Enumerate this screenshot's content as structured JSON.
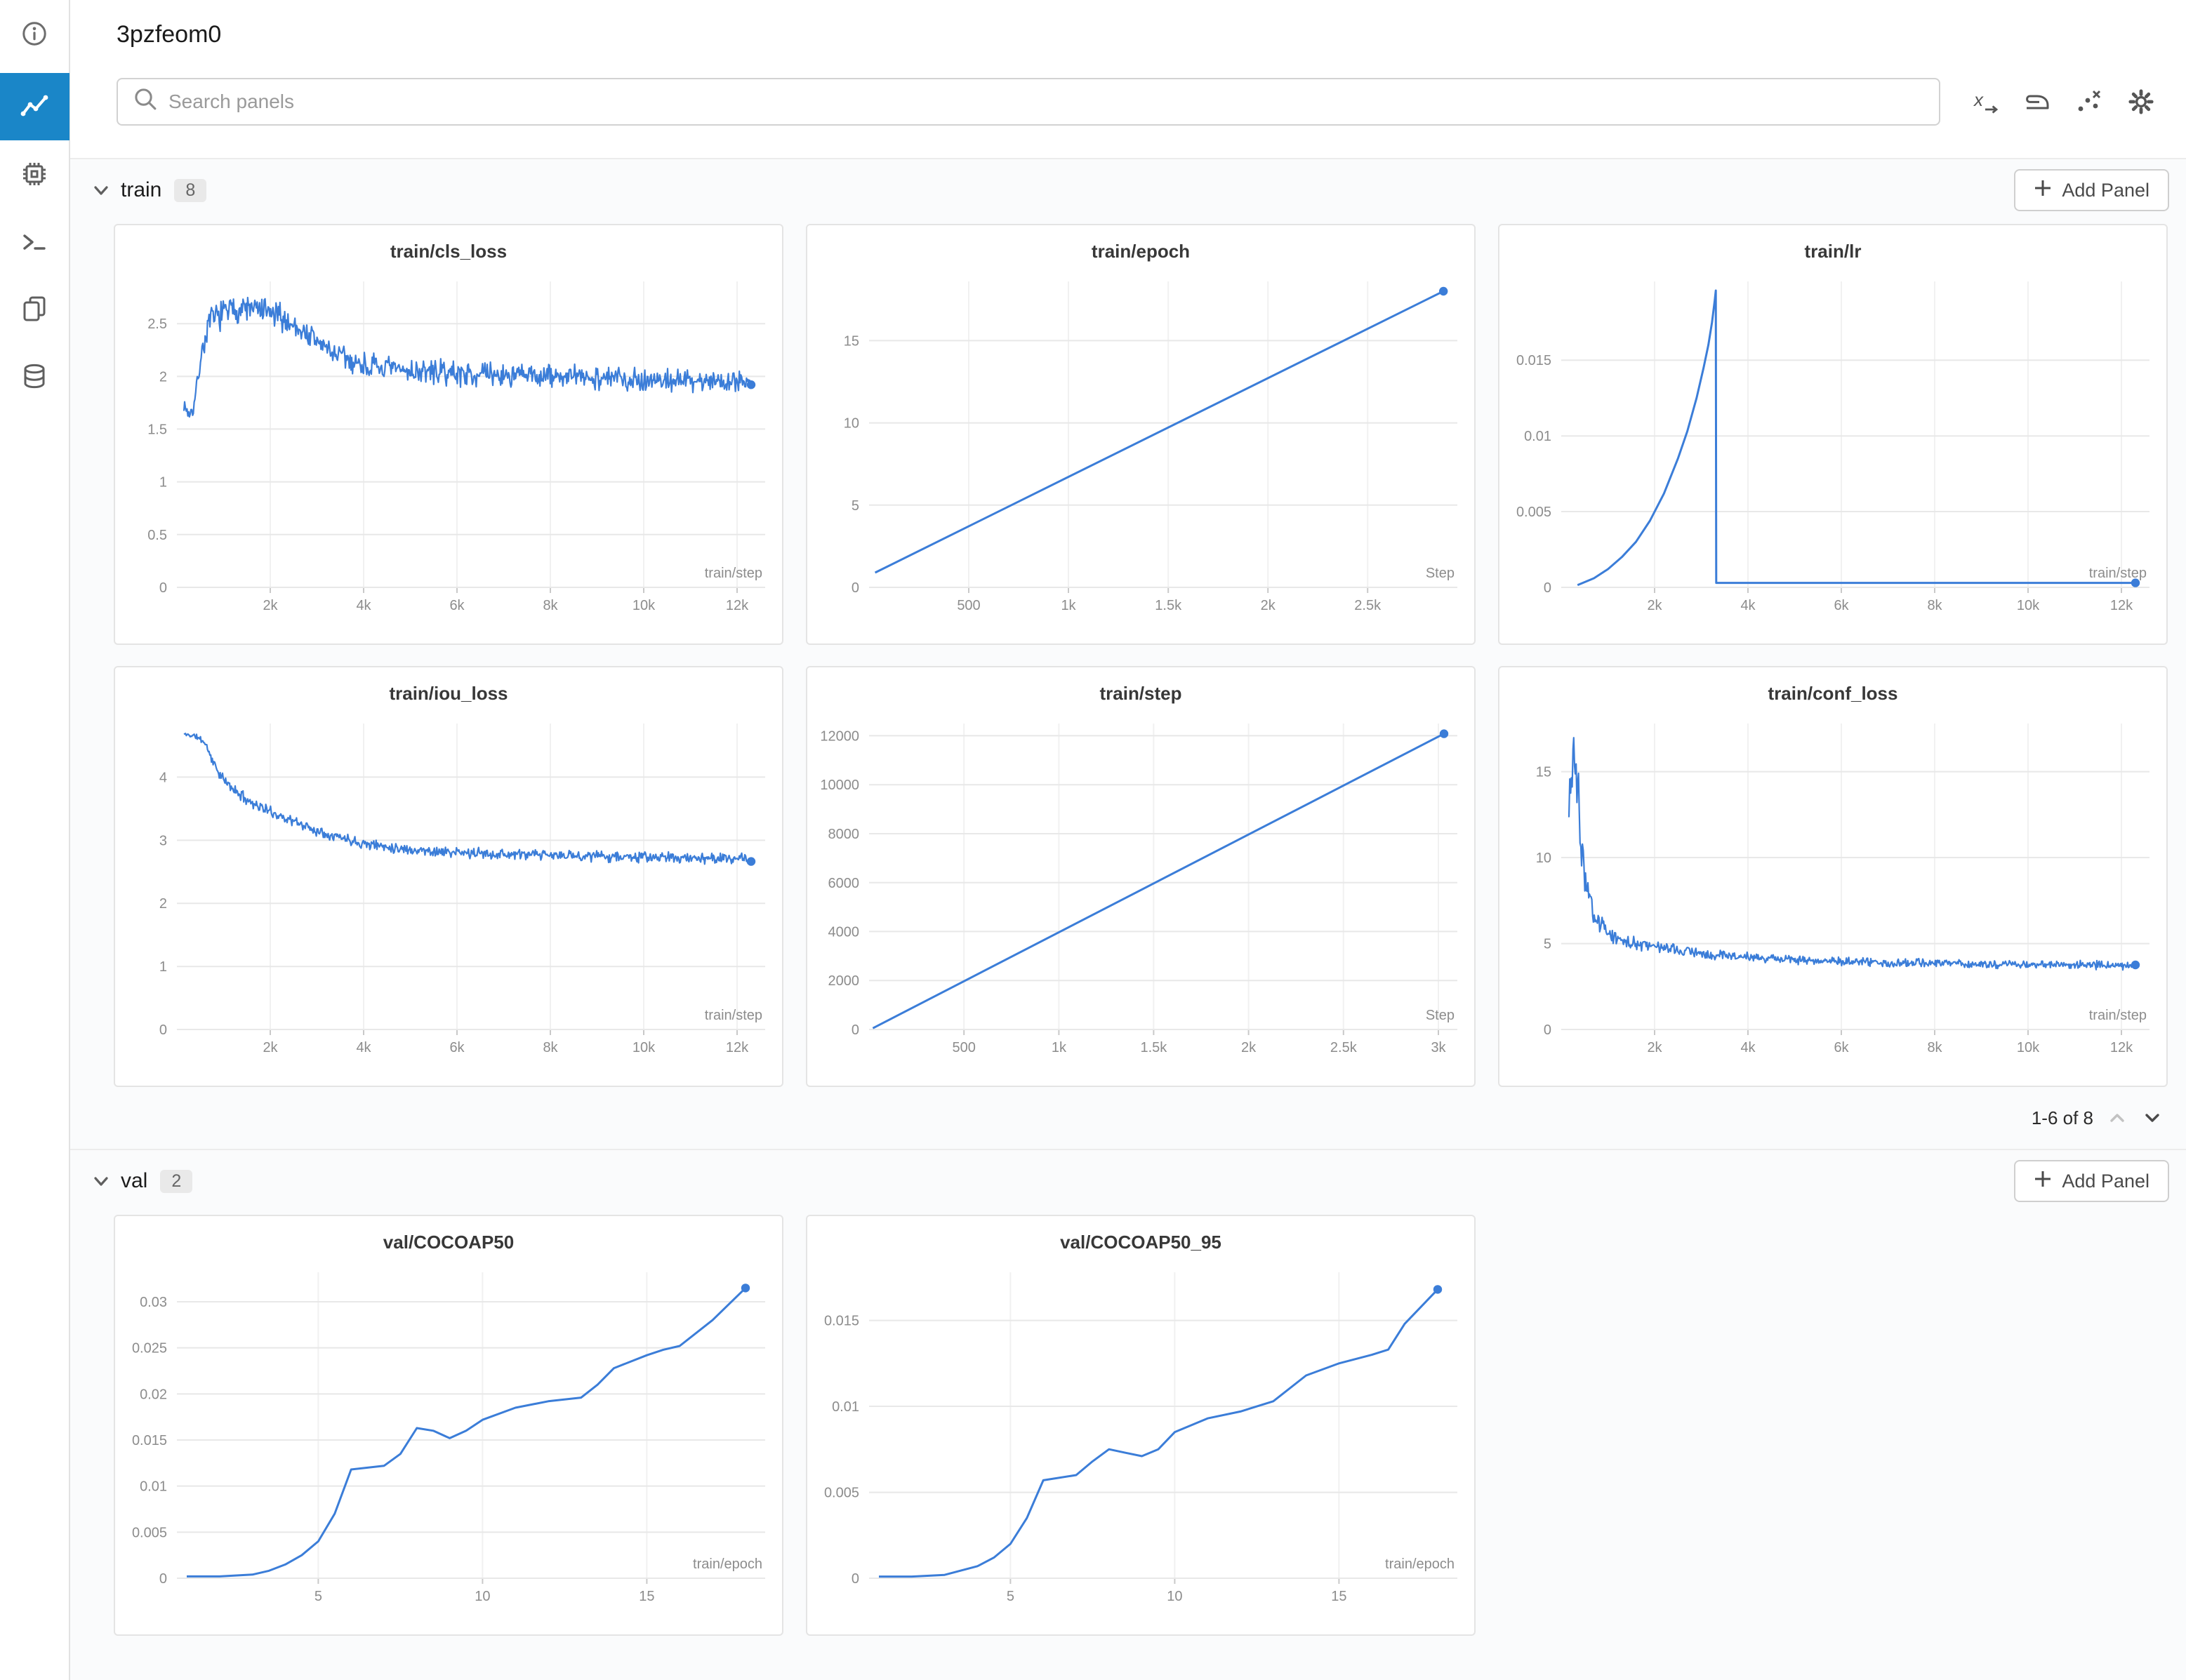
{
  "header": {
    "title": "3pzfeom0"
  },
  "search": {
    "placeholder": "Search panels"
  },
  "colors": {
    "line": "#3b7dd8",
    "nav_selected": "#1a86c8",
    "grid": "#e8e8e8",
    "tick_text": "#8c8c8c"
  },
  "icons": {
    "sidebar": [
      "info-icon",
      "line-chart-icon",
      "chip-icon",
      "terminal-icon",
      "files-icon",
      "database-icon"
    ],
    "toolbar": [
      "x-axis-icon",
      "smoothing-iron-icon",
      "sampling-dots-icon",
      "gear-icon"
    ],
    "search": "search-icon",
    "section": "chevron-down-icon",
    "add_panel": "plus-icon",
    "pagination": [
      "chevron-up-icon",
      "chevron-down-icon"
    ]
  },
  "sections": [
    {
      "label": "train",
      "count": "8",
      "add_panel": "Add Panel",
      "chart_indexes": [
        0,
        1,
        2,
        3,
        4,
        5
      ],
      "pagination": {
        "text": "1-6 of 8"
      }
    },
    {
      "label": "val",
      "count": "2",
      "add_panel": "Add Panel",
      "chart_indexes": [
        6,
        7
      ]
    }
  ],
  "chart_data": [
    {
      "type": "line",
      "title": "train/cls_loss",
      "xlabel": "train/step",
      "xlim": [
        0,
        12600
      ],
      "ylim": [
        0,
        2.9
      ],
      "noisy": true,
      "seed": 7,
      "end_dot": true,
      "x_ticks": [
        {
          "v": 2000,
          "l": "2k"
        },
        {
          "v": 4000,
          "l": "4k"
        },
        {
          "v": 6000,
          "l": "6k"
        },
        {
          "v": 8000,
          "l": "8k"
        },
        {
          "v": 10000,
          "l": "10k"
        },
        {
          "v": 12000,
          "l": "12k"
        }
      ],
      "y_ticks": [
        {
          "v": 0,
          "l": "0"
        },
        {
          "v": 0.5,
          "l": "0.5"
        },
        {
          "v": 1,
          "l": "1"
        },
        {
          "v": 1.5,
          "l": "1.5"
        },
        {
          "v": 2,
          "l": "2"
        },
        {
          "v": 2.5,
          "l": "2.5"
        }
      ],
      "points": [
        [
          150,
          1.73,
          0.05
        ],
        [
          260,
          1.64,
          0.05
        ],
        [
          360,
          1.7,
          0.07
        ],
        [
          520,
          2.2,
          0.1
        ],
        [
          700,
          2.52,
          0.12
        ],
        [
          1000,
          2.6,
          0.13
        ],
        [
          1400,
          2.65,
          0.13
        ],
        [
          1800,
          2.62,
          0.13
        ],
        [
          2200,
          2.56,
          0.13
        ],
        [
          2600,
          2.46,
          0.12
        ],
        [
          3000,
          2.33,
          0.12
        ],
        [
          3400,
          2.21,
          0.12
        ],
        [
          3800,
          2.13,
          0.12
        ],
        [
          4300,
          2.08,
          0.11
        ],
        [
          5000,
          2.05,
          0.11
        ],
        [
          6000,
          2.03,
          0.11
        ],
        [
          7000,
          2.01,
          0.11
        ],
        [
          8000,
          2.0,
          0.11
        ],
        [
          9000,
          1.99,
          0.11
        ],
        [
          10000,
          1.97,
          0.11
        ],
        [
          11000,
          1.96,
          0.1
        ],
        [
          12300,
          1.96,
          0.1
        ]
      ]
    },
    {
      "type": "line",
      "title": "train/epoch",
      "xlabel": "Step",
      "xlim": [
        0,
        2950
      ],
      "ylim": [
        0,
        18.6
      ],
      "noisy": false,
      "end_dot": true,
      "x_ticks": [
        {
          "v": 500,
          "l": "500"
        },
        {
          "v": 1000,
          "l": "1k"
        },
        {
          "v": 1500,
          "l": "1.5k"
        },
        {
          "v": 2000,
          "l": "2k"
        },
        {
          "v": 2500,
          "l": "2.5k"
        }
      ],
      "y_ticks": [
        {
          "v": 0,
          "l": "0"
        },
        {
          "v": 5,
          "l": "5"
        },
        {
          "v": 10,
          "l": "10"
        },
        {
          "v": 15,
          "l": "15"
        }
      ],
      "points": [
        [
          30,
          0.9
        ],
        [
          2880,
          18
        ]
      ]
    },
    {
      "type": "line",
      "title": "train/lr",
      "xlabel": "train/step",
      "xlim": [
        0,
        12600
      ],
      "ylim": [
        0,
        0.0202
      ],
      "noisy": false,
      "end_dot": true,
      "x_ticks": [
        {
          "v": 2000,
          "l": "2k"
        },
        {
          "v": 4000,
          "l": "4k"
        },
        {
          "v": 6000,
          "l": "6k"
        },
        {
          "v": 8000,
          "l": "8k"
        },
        {
          "v": 10000,
          "l": "10k"
        },
        {
          "v": 12000,
          "l": "12k"
        }
      ],
      "y_ticks": [
        {
          "v": 0,
          "l": "0"
        },
        {
          "v": 0.005,
          "l": "0.005"
        },
        {
          "v": 0.01,
          "l": "0.01"
        },
        {
          "v": 0.015,
          "l": "0.015"
        }
      ],
      "points": [
        [
          350,
          0.00015
        ],
        [
          700,
          0.0006
        ],
        [
          1000,
          0.0012
        ],
        [
          1300,
          0.002
        ],
        [
          1600,
          0.003
        ],
        [
          1900,
          0.0044
        ],
        [
          2200,
          0.0062
        ],
        [
          2500,
          0.0085
        ],
        [
          2700,
          0.0103
        ],
        [
          2900,
          0.0125
        ],
        [
          3050,
          0.0145
        ],
        [
          3150,
          0.016
        ],
        [
          3230,
          0.0175
        ],
        [
          3290,
          0.019
        ],
        [
          3310,
          0.0196
        ],
        [
          3320,
          0.0003
        ],
        [
          12300,
          0.0003
        ]
      ]
    },
    {
      "type": "line",
      "title": "train/iou_loss",
      "xlabel": "train/step",
      "xlim": [
        0,
        12600
      ],
      "ylim": [
        0,
        4.85
      ],
      "noisy": true,
      "seed": 11,
      "end_dot": true,
      "x_ticks": [
        {
          "v": 2000,
          "l": "2k"
        },
        {
          "v": 4000,
          "l": "4k"
        },
        {
          "v": 6000,
          "l": "6k"
        },
        {
          "v": 8000,
          "l": "8k"
        },
        {
          "v": 10000,
          "l": "10k"
        },
        {
          "v": 12000,
          "l": "12k"
        }
      ],
      "y_ticks": [
        {
          "v": 0,
          "l": "0"
        },
        {
          "v": 1,
          "l": "1"
        },
        {
          "v": 2,
          "l": "2"
        },
        {
          "v": 3,
          "l": "3"
        },
        {
          "v": 4,
          "l": "4"
        }
      ],
      "points": [
        [
          150,
          4.68,
          0.03
        ],
        [
          400,
          4.65,
          0.04
        ],
        [
          600,
          4.55,
          0.06
        ],
        [
          800,
          4.2,
          0.08
        ],
        [
          1000,
          3.95,
          0.08
        ],
        [
          1300,
          3.75,
          0.08
        ],
        [
          1600,
          3.6,
          0.08
        ],
        [
          2000,
          3.45,
          0.08
        ],
        [
          2500,
          3.3,
          0.08
        ],
        [
          3000,
          3.15,
          0.08
        ],
        [
          3500,
          3.05,
          0.08
        ],
        [
          4000,
          2.95,
          0.08
        ],
        [
          5000,
          2.85,
          0.08
        ],
        [
          6000,
          2.8,
          0.08
        ],
        [
          7000,
          2.78,
          0.08
        ],
        [
          8000,
          2.76,
          0.08
        ],
        [
          9000,
          2.75,
          0.08
        ],
        [
          10000,
          2.73,
          0.08
        ],
        [
          11000,
          2.72,
          0.08
        ],
        [
          12300,
          2.7,
          0.08
        ]
      ]
    },
    {
      "type": "line",
      "title": "train/step",
      "xlabel": "Step",
      "xlim": [
        0,
        3100
      ],
      "ylim": [
        0,
        12500
      ],
      "noisy": false,
      "end_dot": true,
      "x_ticks": [
        {
          "v": 500,
          "l": "500"
        },
        {
          "v": 1000,
          "l": "1k"
        },
        {
          "v": 1500,
          "l": "1.5k"
        },
        {
          "v": 2000,
          "l": "2k"
        },
        {
          "v": 2500,
          "l": "2.5k"
        },
        {
          "v": 3000,
          "l": "3k"
        }
      ],
      "y_ticks": [
        {
          "v": 0,
          "l": "0"
        },
        {
          "v": 2000,
          "l": "2000"
        },
        {
          "v": 4000,
          "l": "4000"
        },
        {
          "v": 6000,
          "l": "6000"
        },
        {
          "v": 8000,
          "l": "8000"
        },
        {
          "v": 10000,
          "l": "10000"
        },
        {
          "v": 12000,
          "l": "12000"
        }
      ],
      "points": [
        [
          20,
          50
        ],
        [
          3030,
          12080
        ]
      ]
    },
    {
      "type": "line",
      "title": "train/conf_loss",
      "xlabel": "train/step",
      "xlim": [
        0,
        12600
      ],
      "ylim": [
        0,
        17.8
      ],
      "noisy": true,
      "seed": 3,
      "end_dot": true,
      "x_ticks": [
        {
          "v": 2000,
          "l": "2k"
        },
        {
          "v": 4000,
          "l": "4k"
        },
        {
          "v": 6000,
          "l": "6k"
        },
        {
          "v": 8000,
          "l": "8k"
        },
        {
          "v": 10000,
          "l": "10k"
        },
        {
          "v": 12000,
          "l": "12k"
        }
      ],
      "y_ticks": [
        {
          "v": 0,
          "l": "0"
        },
        {
          "v": 5,
          "l": "5"
        },
        {
          "v": 10,
          "l": "10"
        },
        {
          "v": 15,
          "l": "15"
        }
      ],
      "points": [
        [
          150,
          13,
          2
        ],
        [
          250,
          16,
          1.5
        ],
        [
          350,
          14,
          2
        ],
        [
          450,
          10,
          1.5
        ],
        [
          550,
          8,
          1
        ],
        [
          700,
          6.5,
          0.7
        ],
        [
          900,
          5.8,
          0.5
        ],
        [
          1200,
          5.3,
          0.4
        ],
        [
          1600,
          5.0,
          0.35
        ],
        [
          2000,
          4.8,
          0.3
        ],
        [
          2500,
          4.6,
          0.3
        ],
        [
          3000,
          4.45,
          0.3
        ],
        [
          4000,
          4.2,
          0.28
        ],
        [
          5000,
          4.05,
          0.25
        ],
        [
          6000,
          3.95,
          0.25
        ],
        [
          7000,
          3.9,
          0.25
        ],
        [
          8000,
          3.85,
          0.25
        ],
        [
          9000,
          3.8,
          0.22
        ],
        [
          10000,
          3.78,
          0.22
        ],
        [
          11000,
          3.75,
          0.22
        ],
        [
          12300,
          3.72,
          0.22
        ]
      ]
    },
    {
      "type": "line",
      "title": "val/COCOAP50",
      "xlabel": "train/epoch",
      "xlim": [
        0.7,
        18.6
      ],
      "ylim": [
        0,
        0.0332
      ],
      "noisy": false,
      "end_dot": true,
      "x_ticks": [
        {
          "v": 5,
          "l": "5"
        },
        {
          "v": 10,
          "l": "10"
        },
        {
          "v": 15,
          "l": "15"
        }
      ],
      "y_ticks": [
        {
          "v": 0,
          "l": "0"
        },
        {
          "v": 0.005,
          "l": "0.005"
        },
        {
          "v": 0.01,
          "l": "0.01"
        },
        {
          "v": 0.015,
          "l": "0.015"
        },
        {
          "v": 0.02,
          "l": "0.02"
        },
        {
          "v": 0.025,
          "l": "0.025"
        },
        {
          "v": 0.03,
          "l": "0.03"
        }
      ],
      "points": [
        [
          1,
          0.0002
        ],
        [
          2,
          0.0002
        ],
        [
          3,
          0.0004
        ],
        [
          3.5,
          0.0008
        ],
        [
          4,
          0.0015
        ],
        [
          4.5,
          0.0025
        ],
        [
          5,
          0.004
        ],
        [
          5.5,
          0.007
        ],
        [
          6,
          0.0118
        ],
        [
          7,
          0.0122
        ],
        [
          7.5,
          0.0135
        ],
        [
          8,
          0.0163
        ],
        [
          8.5,
          0.016
        ],
        [
          9,
          0.0152
        ],
        [
          9.5,
          0.016
        ],
        [
          10,
          0.0172
        ],
        [
          11,
          0.0185
        ],
        [
          12,
          0.0192
        ],
        [
          13,
          0.0196
        ],
        [
          13.5,
          0.021
        ],
        [
          14,
          0.0228
        ],
        [
          15,
          0.0242
        ],
        [
          15.5,
          0.0248
        ],
        [
          16,
          0.0252
        ],
        [
          17,
          0.028
        ],
        [
          18,
          0.0315
        ]
      ]
    },
    {
      "type": "line",
      "title": "val/COCOAP50_95",
      "xlabel": "train/epoch",
      "xlim": [
        0.7,
        18.6
      ],
      "ylim": [
        0,
        0.0178
      ],
      "noisy": false,
      "end_dot": true,
      "x_ticks": [
        {
          "v": 5,
          "l": "5"
        },
        {
          "v": 10,
          "l": "10"
        },
        {
          "v": 15,
          "l": "15"
        }
      ],
      "y_ticks": [
        {
          "v": 0,
          "l": "0"
        },
        {
          "v": 0.005,
          "l": "0.005"
        },
        {
          "v": 0.01,
          "l": "0.01"
        },
        {
          "v": 0.015,
          "l": "0.015"
        }
      ],
      "points": [
        [
          1,
          0.0001
        ],
        [
          2,
          0.0001
        ],
        [
          3,
          0.0002
        ],
        [
          4,
          0.0007
        ],
        [
          4.5,
          0.0012
        ],
        [
          5,
          0.002
        ],
        [
          5.5,
          0.0035
        ],
        [
          6,
          0.0057
        ],
        [
          7,
          0.006
        ],
        [
          7.5,
          0.0068
        ],
        [
          8,
          0.0075
        ],
        [
          8.5,
          0.0073
        ],
        [
          9,
          0.0071
        ],
        [
          9.5,
          0.0075
        ],
        [
          10,
          0.0085
        ],
        [
          11,
          0.0093
        ],
        [
          12,
          0.0097
        ],
        [
          13,
          0.0103
        ],
        [
          14,
          0.0118
        ],
        [
          15,
          0.0125
        ],
        [
          16,
          0.013
        ],
        [
          16.5,
          0.0133
        ],
        [
          17,
          0.0148
        ],
        [
          18,
          0.0168
        ]
      ]
    }
  ]
}
